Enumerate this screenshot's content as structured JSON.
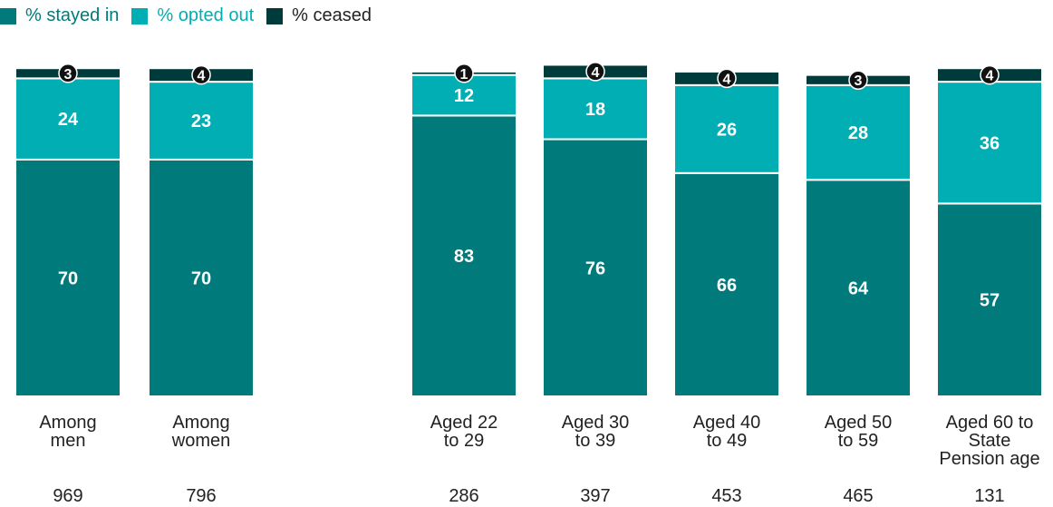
{
  "legend": {
    "stayed": "% stayed in",
    "opted": "% opted out",
    "ceased": "% ceased"
  },
  "colors": {
    "stayed": "#007a7a",
    "opted": "#00aeb3",
    "ceased": "#003b3b",
    "legend_opted_text": "#00aeb3",
    "legend_stayed_text": "#007a7a"
  },
  "chart_data": {
    "type": "bar",
    "stacked": true,
    "groups": [
      [
        "Among men",
        "Among women"
      ],
      [
        "Aged 22 to 29",
        "Aged 30 to 39",
        "Aged 40 to 49",
        "Aged 50 to 59",
        "Aged 60 to State Pension age"
      ]
    ],
    "categories": [
      "Among men",
      "Among women",
      "Aged 22 to 29",
      "Aged 30 to 39",
      "Aged 40 to 49",
      "Aged 50 to 59",
      "Aged 60 to State Pension age"
    ],
    "category_lines": [
      [
        "Among",
        "men"
      ],
      [
        "Among",
        "women"
      ],
      [
        "Aged 22",
        "to 29"
      ],
      [
        "Aged 30",
        "to 39"
      ],
      [
        "Aged 40",
        "to 49"
      ],
      [
        "Aged 50",
        "to 59"
      ],
      [
        "Aged 60 to",
        "State",
        "Pension age"
      ]
    ],
    "bases": [
      "969",
      "796",
      "286",
      "397",
      "453",
      "465",
      "131"
    ],
    "series": [
      {
        "name": "% stayed in",
        "key": "stayed",
        "values": [
          70,
          70,
          83,
          76,
          66,
          64,
          57
        ]
      },
      {
        "name": "% opted out",
        "key": "opted",
        "values": [
          24,
          23,
          12,
          18,
          26,
          28,
          36
        ]
      },
      {
        "name": "% ceased",
        "key": "ceased",
        "values": [
          3,
          4,
          1,
          4,
          4,
          3,
          4
        ]
      }
    ],
    "ylim": [
      0,
      100
    ],
    "legend_position": "top-left",
    "grid": false
  }
}
